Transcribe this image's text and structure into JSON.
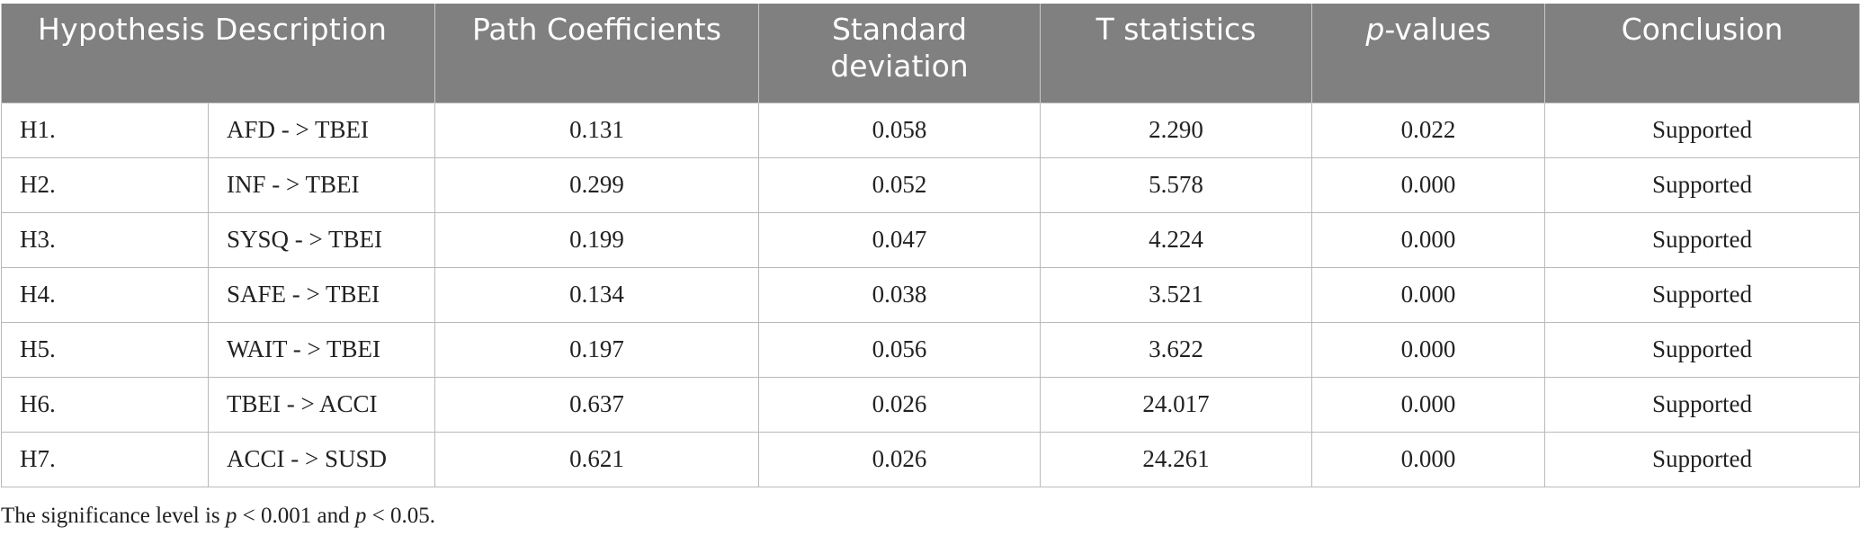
{
  "header": {
    "hypothesis_description": "Hypothesis Description",
    "path_coefficients": "Path Coefficients",
    "standard_deviation_line1": "Standard",
    "standard_deviation_line2": "deviation",
    "t_statistics": "T statistics",
    "p_values_italic": "p",
    "p_values_rest": "-values",
    "conclusion": "Conclusion"
  },
  "rows": [
    {
      "id": "H1.",
      "desc": "AFD - > TBEI",
      "path": "0.131",
      "sd": "0.058",
      "t": "2.290",
      "p": "0.022",
      "conclusion": "Supported"
    },
    {
      "id": "H2.",
      "desc": "INF - > TBEI",
      "path": "0.299",
      "sd": "0.052",
      "t": "5.578",
      "p": "0.000",
      "conclusion": "Supported"
    },
    {
      "id": "H3.",
      "desc": "SYSQ - > TBEI",
      "path": "0.199",
      "sd": "0.047",
      "t": "4.224",
      "p": "0.000",
      "conclusion": "Supported"
    },
    {
      "id": "H4.",
      "desc": "SAFE - > TBEI",
      "path": "0.134",
      "sd": "0.038",
      "t": "3.521",
      "p": "0.000",
      "conclusion": "Supported"
    },
    {
      "id": "H5.",
      "desc": "WAIT - > TBEI",
      "path": "0.197",
      "sd": "0.056",
      "t": "3.622",
      "p": "0.000",
      "conclusion": "Supported"
    },
    {
      "id": "H6.",
      "desc": "TBEI - > ACCI",
      "path": "0.637",
      "sd": "0.026",
      "t": "24.017",
      "p": "0.000",
      "conclusion": "Supported"
    },
    {
      "id": "H7.",
      "desc": "ACCI - > SUSD",
      "path": "0.621",
      "sd": "0.026",
      "t": "24.261",
      "p": "0.000",
      "conclusion": "Supported"
    }
  ],
  "note": {
    "part1": "The significance level is ",
    "p1": "p",
    "part2": " < 0.001 and ",
    "p2": "p",
    "part3": " < 0.05."
  },
  "colors": {
    "header_bg": "#808080",
    "header_text": "#ffffff",
    "grid": "#b9b9b9"
  }
}
